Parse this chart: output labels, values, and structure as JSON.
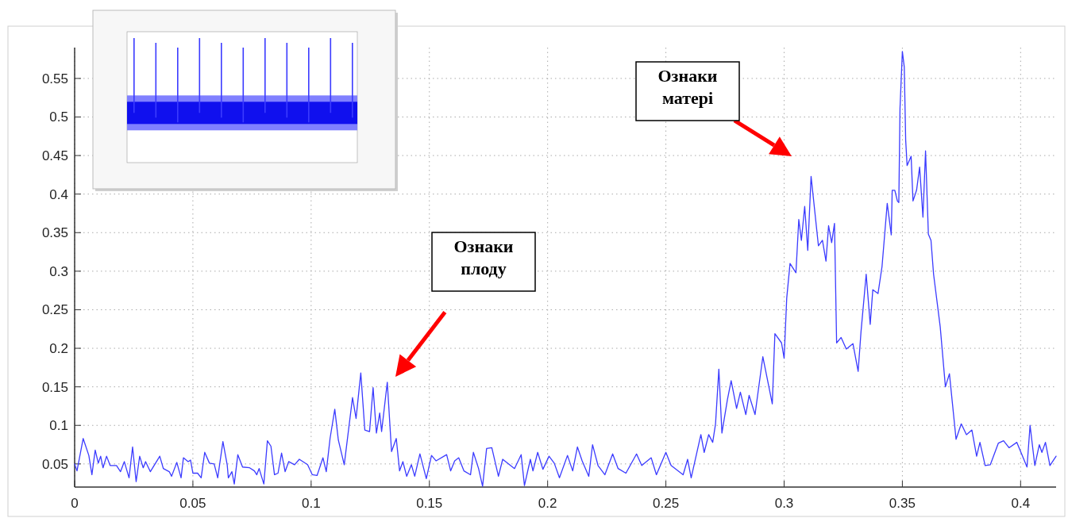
{
  "chart_data": {
    "type": "line",
    "x": [
      0,
      0.001,
      0.0036,
      0.006,
      0.0073,
      0.0087,
      0.01,
      0.011,
      0.012,
      0.0135,
      0.015,
      0.0177,
      0.0194,
      0.021,
      0.023,
      0.0245,
      0.026,
      0.0275,
      0.029,
      0.03,
      0.032,
      0.034,
      0.036,
      0.0375,
      0.04,
      0.041,
      0.0432,
      0.045,
      0.046,
      0.048,
      0.049,
      0.05,
      0.052,
      0.0535,
      0.055,
      0.057,
      0.059,
      0.0605,
      0.0627,
      0.0645,
      0.065,
      0.0665,
      0.0675,
      0.069,
      0.071,
      0.074,
      0.076,
      0.077,
      0.078,
      0.08,
      0.0815,
      0.083,
      0.0845,
      0.086,
      0.0875,
      0.089,
      0.0905,
      0.093,
      0.095,
      0.0985,
      0.1005,
      0.1025,
      0.105,
      0.1064,
      0.108,
      0.11,
      0.1115,
      0.114,
      0.1175,
      0.119,
      0.121,
      0.1227,
      0.1247,
      0.1262,
      0.1276,
      0.129,
      0.1298,
      0.1322,
      0.134,
      0.136,
      0.1374,
      0.1388,
      0.1404,
      0.1424,
      0.1438,
      0.146,
      0.1487,
      0.1509,
      0.1528,
      0.1573,
      0.159,
      0.1607,
      0.1624,
      0.1646,
      0.1674,
      0.1686,
      0.1708,
      0.1725,
      0.1742,
      0.1764,
      0.1792,
      0.181,
      0.186,
      0.1888,
      0.1902,
      0.1927,
      0.1938,
      0.1958,
      0.198,
      0.2006,
      0.2028,
      0.205,
      0.2084,
      0.2106,
      0.2126,
      0.2146,
      0.2174,
      0.219,
      0.2213,
      0.2242,
      0.2275,
      0.2298,
      0.2331,
      0.2376,
      0.2398,
      0.2438,
      0.246,
      0.25,
      0.2522,
      0.2573,
      0.2592,
      0.2607,
      0.2648,
      0.2662,
      0.2681,
      0.2698,
      0.271,
      0.2724,
      0.2737,
      0.276,
      0.2776,
      0.2799,
      0.2815,
      0.2838,
      0.2852,
      0.2877,
      0.291,
      0.295,
      0.2961,
      0.2989,
      0.3,
      0.3011,
      0.3025,
      0.305,
      0.3062,
      0.3073,
      0.3087,
      0.31,
      0.3114,
      0.3145,
      0.3162,
      0.3177,
      0.3188,
      0.3201,
      0.3213,
      0.3222,
      0.3241,
      0.3263,
      0.3291,
      0.3313,
      0.3325,
      0.3347,
      0.3364,
      0.3375,
      0.3397,
      0.3414,
      0.3436,
      0.3453,
      0.3457,
      0.3468,
      0.3479,
      0.3485,
      0.349,
      0.35,
      0.3508,
      0.3514,
      0.352,
      0.3537,
      0.3545,
      0.356,
      0.3573,
      0.3587,
      0.3598,
      0.361,
      0.3621,
      0.3632,
      0.366,
      0.3682,
      0.3699,
      0.3727,
      0.3749,
      0.3771,
      0.3794,
      0.3814,
      0.3828,
      0.385,
      0.3872,
      0.3906,
      0.3928,
      0.3951,
      0.3984,
      0.4007,
      0.4027,
      0.404,
      0.406,
      0.4079,
      0.409,
      0.4105,
      0.4124,
      0.415
    ],
    "series": [
      {
        "color": "#3b3bff",
        "values": [
          0.05,
          0.041,
          0.083,
          0.061,
          0.036,
          0.068,
          0.051,
          0.06,
          0.045,
          0.06,
          0.048,
          0.048,
          0.04,
          0.053,
          0.032,
          0.072,
          0.027,
          0.06,
          0.045,
          0.053,
          0.04,
          0.05,
          0.06,
          0.044,
          0.04,
          0.034,
          0.052,
          0.032,
          0.058,
          0.053,
          0.055,
          0.038,
          0.038,
          0.032,
          0.065,
          0.051,
          0.05,
          0.032,
          0.079,
          0.049,
          0.032,
          0.04,
          0.024,
          0.062,
          0.046,
          0.045,
          0.041,
          0.036,
          0.044,
          0.024,
          0.08,
          0.073,
          0.036,
          0.038,
          0.064,
          0.04,
          0.053,
          0.049,
          0.056,
          0.049,
          0.036,
          0.035,
          0.058,
          0.04,
          0.083,
          0.121,
          0.081,
          0.049,
          0.136,
          0.109,
          0.168,
          0.094,
          0.092,
          0.149,
          0.09,
          0.116,
          0.092,
          0.156,
          0.066,
          0.083,
          0.041,
          0.053,
          0.034,
          0.049,
          0.034,
          0.063,
          0.031,
          0.061,
          0.054,
          0.062,
          0.041,
          0.054,
          0.058,
          0.041,
          0.036,
          0.065,
          0.044,
          0.021,
          0.07,
          0.071,
          0.034,
          0.056,
          0.044,
          0.062,
          0.022,
          0.056,
          0.041,
          0.065,
          0.043,
          0.06,
          0.051,
          0.032,
          0.061,
          0.041,
          0.072,
          0.054,
          0.034,
          0.075,
          0.048,
          0.036,
          0.063,
          0.044,
          0.038,
          0.063,
          0.048,
          0.058,
          0.036,
          0.065,
          0.048,
          0.036,
          0.056,
          0.032,
          0.088,
          0.065,
          0.088,
          0.078,
          0.102,
          0.173,
          0.09,
          0.133,
          0.158,
          0.122,
          0.143,
          0.114,
          0.139,
          0.114,
          0.189,
          0.128,
          0.219,
          0.207,
          0.187,
          0.265,
          0.31,
          0.298,
          0.367,
          0.34,
          0.384,
          0.327,
          0.423,
          0.333,
          0.34,
          0.313,
          0.359,
          0.337,
          0.362,
          0.207,
          0.214,
          0.199,
          0.206,
          0.17,
          0.221,
          0.296,
          0.231,
          0.276,
          0.271,
          0.306,
          0.388,
          0.347,
          0.405,
          0.405,
          0.391,
          0.389,
          0.511,
          0.585,
          0.565,
          0.47,
          0.437,
          0.449,
          0.391,
          0.405,
          0.435,
          0.37,
          0.456,
          0.348,
          0.34,
          0.296,
          0.228,
          0.15,
          0.167,
          0.082,
          0.102,
          0.088,
          0.094,
          0.06,
          0.078,
          0.048,
          0.049,
          0.077,
          0.08,
          0.071,
          0.078,
          0.061,
          0.046,
          0.1,
          0.048,
          0.075,
          0.065,
          0.078,
          0.048,
          0.06
        ]
      }
    ],
    "xlim": [
      0,
      0.415
    ],
    "ylim": [
      0.02,
      0.59
    ],
    "xticks": [
      0,
      0.05,
      0.1,
      0.15,
      0.2,
      0.25,
      0.3,
      0.35,
      0.4
    ],
    "yticks": [
      0.05,
      0.1,
      0.15,
      0.2,
      0.25,
      0.3,
      0.35,
      0.4,
      0.45,
      0.5,
      0.55
    ],
    "grid": true,
    "marker": "none",
    "line_style": "solid",
    "annotations": [
      "Ознаки плоду",
      "Ознаки матері"
    ]
  }
}
